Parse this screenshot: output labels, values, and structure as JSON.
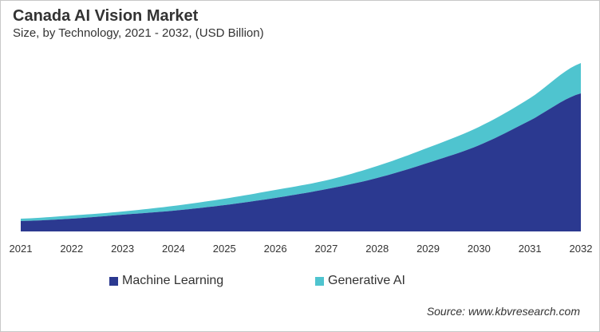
{
  "chart_data": {
    "type": "area",
    "stacked": true,
    "title": "Canada AI Vision Market",
    "subtitle": "Size, by Technology, 2021 - 2032, (USD Billion)",
    "categories": [
      "2021",
      "2022",
      "2023",
      "2024",
      "2025",
      "2026",
      "2027",
      "2028",
      "2029",
      "2030",
      "2031",
      "2032"
    ],
    "series": [
      {
        "name": "Machine Learning",
        "color": "#2b3990",
        "values": [
          13,
          16,
          21,
          26,
          33,
          42,
          53,
          67,
          86,
          108,
          139,
          173
        ]
      },
      {
        "name": "Generative AI",
        "color": "#4fc4cf",
        "values": [
          3,
          4,
          4,
          6,
          8,
          10,
          11,
          15,
          19,
          23,
          28,
          38
        ]
      }
    ],
    "ylim": [
      0,
      220
    ],
    "y_axis_visible": false,
    "grid": false,
    "legend_placement": "bottom",
    "source": "Source: www.kbvresearch.com"
  }
}
